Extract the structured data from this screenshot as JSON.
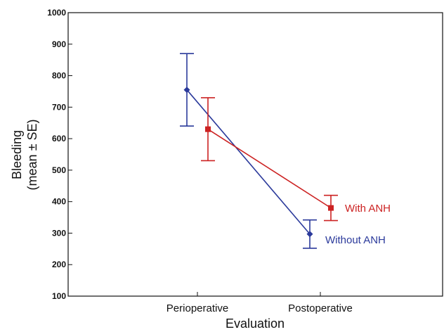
{
  "chart_data": {
    "type": "line",
    "title": "",
    "xlabel": "Evaluation",
    "ylabel_line1": "Bleeding",
    "ylabel_line2": "(mean ± SE)",
    "categories": [
      "Perioperative",
      "Postoperative"
    ],
    "ylim": [
      100,
      1000
    ],
    "yticks": [
      100,
      200,
      300,
      400,
      500,
      600,
      700,
      800,
      900,
      1000
    ],
    "grid": false,
    "legend": "inline labels at series end",
    "series": [
      {
        "name": "Without ANH",
        "color": "#2b3a9b",
        "marker": "diamond",
        "values": [
          755,
          297
        ],
        "se": [
          115,
          45
        ]
      },
      {
        "name": "With ANH",
        "color": "#cc2222",
        "marker": "square",
        "values": [
          630,
          380
        ],
        "se": [
          100,
          40
        ]
      }
    ]
  }
}
